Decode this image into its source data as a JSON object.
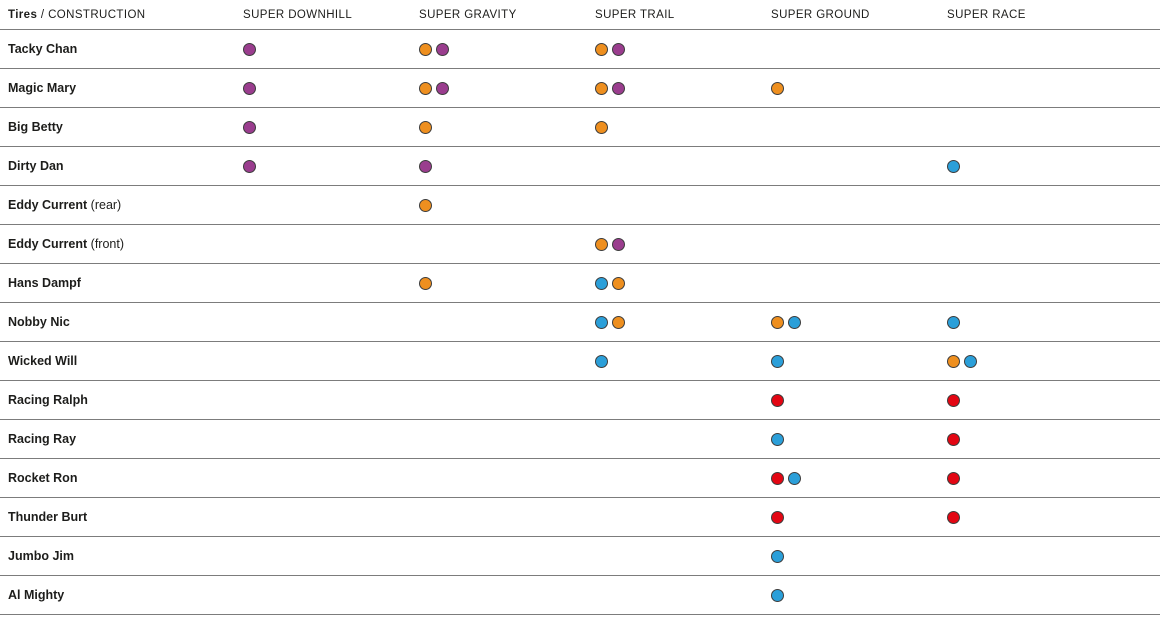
{
  "header": {
    "title_bold": "Tires",
    "title_rest": " / CONSTRUCTION"
  },
  "colors": {
    "orange": "#EE8F1F",
    "purple": "#9A3D8E",
    "blue": "#2B9FD9",
    "red": "#E30613"
  },
  "chart_data": {
    "type": "table",
    "title": "Tires / CONSTRUCTION",
    "columns": [
      "SUPER DOWNHILL",
      "SUPER GRAVITY",
      "SUPER TRAIL",
      "SUPER GROUND",
      "SUPER RACE"
    ],
    "legend_colors": {
      "orange": "#EE8F1F",
      "purple": "#9A3D8E",
      "blue": "#2B9FD9",
      "red": "#E30613"
    },
    "rows": [
      {
        "name": "Tacky Chan",
        "suffix": "",
        "cells": [
          [
            "purple"
          ],
          [
            "orange",
            "purple"
          ],
          [
            "orange",
            "purple"
          ],
          [],
          []
        ]
      },
      {
        "name": "Magic Mary",
        "suffix": "",
        "cells": [
          [
            "purple"
          ],
          [
            "orange",
            "purple"
          ],
          [
            "orange",
            "purple"
          ],
          [
            "orange"
          ],
          []
        ]
      },
      {
        "name": "Big Betty",
        "suffix": "",
        "cells": [
          [
            "purple"
          ],
          [
            "orange"
          ],
          [
            "orange"
          ],
          [],
          []
        ]
      },
      {
        "name": "Dirty Dan",
        "suffix": "",
        "cells": [
          [
            "purple"
          ],
          [
            "purple"
          ],
          [],
          [],
          [
            "blue"
          ]
        ]
      },
      {
        "name": "Eddy Current",
        "suffix": "(rear)",
        "cells": [
          [],
          [
            "orange"
          ],
          [],
          [],
          []
        ]
      },
      {
        "name": "Eddy Current",
        "suffix": "(front)",
        "cells": [
          [],
          [],
          [
            "orange",
            "purple"
          ],
          [],
          []
        ]
      },
      {
        "name": "Hans Dampf",
        "suffix": "",
        "cells": [
          [],
          [
            "orange"
          ],
          [
            "blue",
            "orange"
          ],
          [],
          []
        ]
      },
      {
        "name": "Nobby Nic",
        "suffix": "",
        "cells": [
          [],
          [],
          [
            "blue",
            "orange"
          ],
          [
            "orange",
            "blue"
          ],
          [
            "blue"
          ]
        ]
      },
      {
        "name": "Wicked Will",
        "suffix": "",
        "cells": [
          [],
          [],
          [
            "blue"
          ],
          [
            "blue"
          ],
          [
            "orange",
            "blue"
          ]
        ]
      },
      {
        "name": "Racing Ralph",
        "suffix": "",
        "cells": [
          [],
          [],
          [],
          [
            "red"
          ],
          [
            "red"
          ]
        ]
      },
      {
        "name": "Racing Ray",
        "suffix": "",
        "cells": [
          [],
          [],
          [],
          [
            "blue"
          ],
          [
            "red"
          ]
        ]
      },
      {
        "name": "Rocket Ron",
        "suffix": "",
        "cells": [
          [],
          [],
          [],
          [
            "red",
            "blue"
          ],
          [
            "red"
          ]
        ]
      },
      {
        "name": "Thunder Burt",
        "suffix": "",
        "cells": [
          [],
          [],
          [],
          [
            "red"
          ],
          [
            "red"
          ]
        ]
      },
      {
        "name": "Jumbo Jim",
        "suffix": "",
        "cells": [
          [],
          [],
          [],
          [
            "blue"
          ],
          []
        ]
      },
      {
        "name": "Al Mighty",
        "suffix": "",
        "cells": [
          [],
          [],
          [],
          [
            "blue"
          ],
          []
        ]
      }
    ]
  }
}
